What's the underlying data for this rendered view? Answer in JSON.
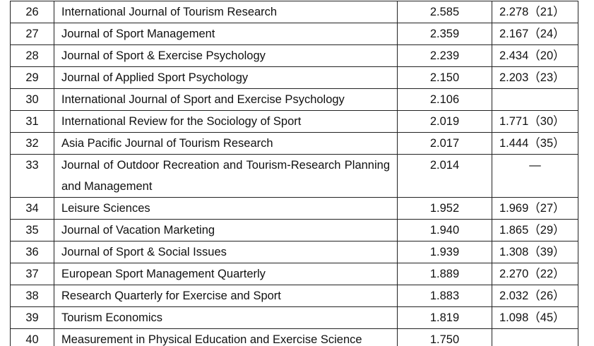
{
  "table": {
    "rows": [
      {
        "rank": "26",
        "journal": "International Journal of Tourism Research",
        "value": "2.585",
        "prev": "2.278（21）"
      },
      {
        "rank": "27",
        "journal": "Journal of Sport Management",
        "value": "2.359",
        "prev": "2.167（24）"
      },
      {
        "rank": "28",
        "journal": "Journal of Sport & Exercise Psychology",
        "value": "2.239",
        "prev": "2.434（20）"
      },
      {
        "rank": "29",
        "journal": "Journal of Applied Sport Psychology",
        "value": "2.150",
        "prev": "2.203（23）"
      },
      {
        "rank": "30",
        "journal": "International Journal of Sport and Exercise Psychology",
        "value": "2.106"
      },
      {
        "rank": "31",
        "journal": "International Review for the Sociology of Sport",
        "value": "2.019",
        "prev": "1.771（30）"
      },
      {
        "rank": "32",
        "journal": "Asia Pacific Journal of Tourism Research",
        "value": "2.017",
        "prev": "1.444（35）"
      },
      {
        "rank": "33",
        "journal": "Journal of Outdoor Recreation and Tourism-Research Planning and Management",
        "value": "2.014",
        "prev": "—"
      },
      {
        "rank": "34",
        "journal": "Leisure Sciences",
        "value": "1.952",
        "prev": "1.969（27）"
      },
      {
        "rank": "35",
        "journal": "Journal of Vacation Marketing",
        "value": "1.940",
        "prev": "1.865（29）"
      },
      {
        "rank": "36",
        "journal": "Journal of Sport & Social Issues",
        "value": "1.939",
        "prev": "1.308（39）"
      },
      {
        "rank": "37",
        "journal": "European Sport Management Quarterly",
        "value": "1.889",
        "prev": "2.270（22）"
      },
      {
        "rank": "38",
        "journal": "Research Quarterly for Exercise and Sport",
        "value": "1.883",
        "prev": "2.032（26）"
      },
      {
        "rank": "39",
        "journal": "Tourism Economics",
        "value": "1.819",
        "prev": "1.098（45）"
      },
      {
        "rank": "40",
        "journal": "Measurement in Physical Education and Exercise Science",
        "value": "1.750"
      }
    ]
  }
}
